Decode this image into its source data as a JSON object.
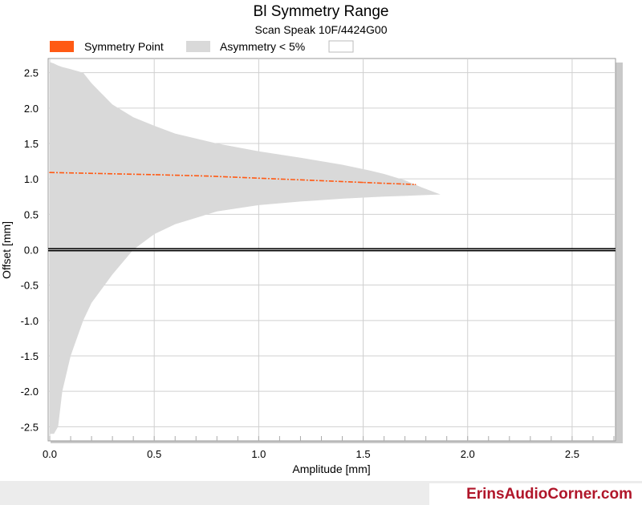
{
  "chart_data": {
    "type": "area",
    "title": "Bl Symmetry Range",
    "subtitle": "Scan Speak 10F/4424G00",
    "xlabel": "Amplitude [mm]",
    "ylabel": "Offset [mm]",
    "xlim": [
      0,
      2.7
    ],
    "ylim": [
      -2.7,
      2.7
    ],
    "xticks": [
      "0.0",
      "0.5",
      "1.0",
      "1.5",
      "2.0",
      "2.5"
    ],
    "yticks": [
      "2.5",
      "2.0",
      "1.5",
      "1.0",
      "0.5",
      "0.0",
      "-0.5",
      "-1.0",
      "-1.5",
      "-2.0",
      "-2.5"
    ],
    "grid": true,
    "legend_position": "top-left",
    "legend": [
      {
        "label": "Symmetry Point",
        "color": "#ff5a14"
      },
      {
        "label": "Asymmetry < 5%",
        "color": "#d9d9d9"
      },
      {
        "label": "",
        "color": "#ffffff"
      }
    ],
    "series": [
      {
        "name": "Symmetry Point",
        "x": [
          0.0,
          0.25,
          0.5,
          0.75,
          1.0,
          1.25,
          1.5,
          1.75
        ],
        "y": [
          1.09,
          1.075,
          1.06,
          1.04,
          1.01,
          0.98,
          0.95,
          0.92
        ]
      },
      {
        "name": "Asymmetry < 5%",
        "x": [
          0.0,
          0.02,
          0.04,
          0.06,
          0.1,
          0.16,
          0.2,
          0.3,
          0.4,
          0.5,
          0.6,
          0.8,
          1.0,
          1.2,
          1.4,
          1.53,
          1.6,
          1.7,
          1.78,
          1.87
        ],
        "upper": [
          2.65,
          2.63,
          2.6,
          2.58,
          2.55,
          2.5,
          2.35,
          2.05,
          1.87,
          1.75,
          1.64,
          1.5,
          1.39,
          1.3,
          1.2,
          1.12,
          1.07,
          0.98,
          0.88,
          0.78
        ],
        "lower": [
          -2.6,
          -2.6,
          -2.5,
          -2.0,
          -1.5,
          -1.0,
          -0.75,
          -0.35,
          0.0,
          0.22,
          0.36,
          0.54,
          0.63,
          0.68,
          0.72,
          0.74,
          0.75,
          0.76,
          0.77,
          0.78
        ]
      }
    ],
    "zero_line": 0.0
  },
  "footer": {
    "brand": "ErinsAudioCorner.com"
  }
}
